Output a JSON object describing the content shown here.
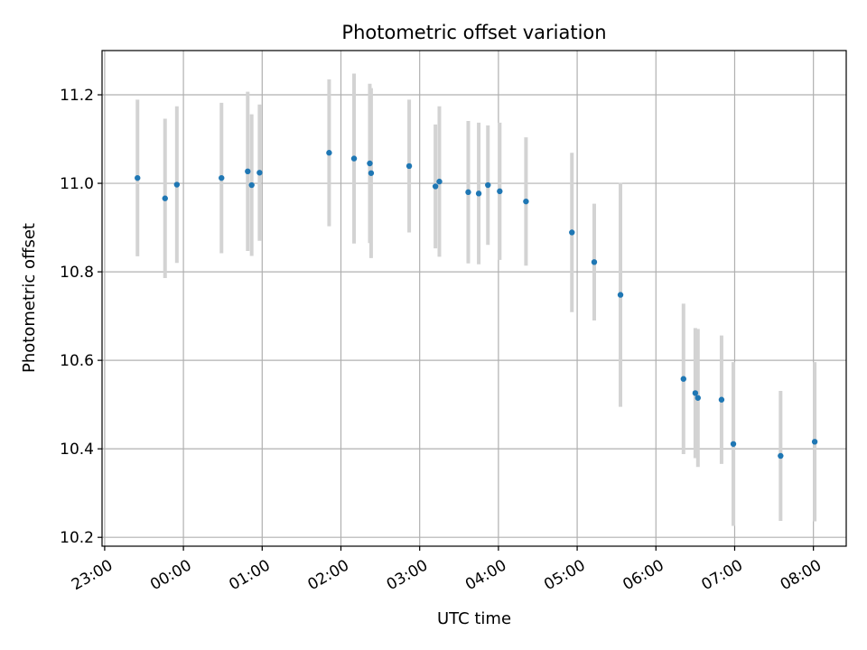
{
  "chart_data": {
    "type": "scatter",
    "title": "Photometric offset variation",
    "xlabel": "UTC time",
    "ylabel": "Photometric offset",
    "x_axis_kind": "time (hours, night spanning midnight)",
    "xlim": [
      "22:58",
      "08:25"
    ],
    "ylim": [
      10.18,
      11.3
    ],
    "grid": true,
    "x_ticks": [
      "23:00",
      "00:00",
      "01:00",
      "02:00",
      "03:00",
      "04:00",
      "05:00",
      "06:00",
      "07:00",
      "08:00"
    ],
    "y_ticks": [
      "10.2",
      "10.4",
      "10.6",
      "10.8",
      "11.0",
      "11.2"
    ],
    "colors": {
      "points": "#1f77b4",
      "errorbars": "#d3d3d3",
      "grid": "#b0b0b0",
      "axes": "#000000"
    },
    "points": [
      {
        "time": "23:25",
        "y": 11.012,
        "yerr": 0.177
      },
      {
        "time": "23:46",
        "y": 10.966,
        "yerr": 0.18
      },
      {
        "time": "23:55",
        "y": 10.997,
        "yerr": 0.177
      },
      {
        "time": "00:29",
        "y": 11.012,
        "yerr": 0.17
      },
      {
        "time": "00:49",
        "y": 11.027,
        "yerr": 0.18
      },
      {
        "time": "00:52",
        "y": 10.996,
        "yerr": 0.16
      },
      {
        "time": "00:58",
        "y": 11.024,
        "yerr": 0.154
      },
      {
        "time": "01:51",
        "y": 11.069,
        "yerr": 0.166
      },
      {
        "time": "02:10",
        "y": 11.056,
        "yerr": 0.192
      },
      {
        "time": "02:22",
        "y": 11.045,
        "yerr": 0.18
      },
      {
        "time": "02:23",
        "y": 11.023,
        "yerr": 0.192
      },
      {
        "time": "02:52",
        "y": 11.039,
        "yerr": 0.15
      },
      {
        "time": "03:12",
        "y": 10.993,
        "yerr": 0.14
      },
      {
        "time": "03:15",
        "y": 11.004,
        "yerr": 0.17
      },
      {
        "time": "03:37",
        "y": 10.98,
        "yerr": 0.161
      },
      {
        "time": "03:45",
        "y": 10.977,
        "yerr": 0.16
      },
      {
        "time": "03:52",
        "y": 10.996,
        "yerr": 0.135
      },
      {
        "time": "04:01",
        "y": 10.982,
        "yerr": 0.155
      },
      {
        "time": "04:21",
        "y": 10.959,
        "yerr": 0.145
      },
      {
        "time": "04:56",
        "y": 10.889,
        "yerr": 0.18
      },
      {
        "time": "05:13",
        "y": 10.822,
        "yerr": 0.132
      },
      {
        "time": "05:33",
        "y": 10.748,
        "yerr": 0.253
      },
      {
        "time": "06:21",
        "y": 10.558,
        "yerr": 0.17
      },
      {
        "time": "06:30",
        "y": 10.526,
        "yerr": 0.147
      },
      {
        "time": "06:32",
        "y": 10.515,
        "yerr": 0.156
      },
      {
        "time": "06:50",
        "y": 10.511,
        "yerr": 0.145
      },
      {
        "time": "06:59",
        "y": 10.411,
        "yerr": 0.185
      },
      {
        "time": "07:35",
        "y": 10.384,
        "yerr": 0.147
      },
      {
        "time": "08:01",
        "y": 10.416,
        "yerr": 0.18
      }
    ]
  }
}
